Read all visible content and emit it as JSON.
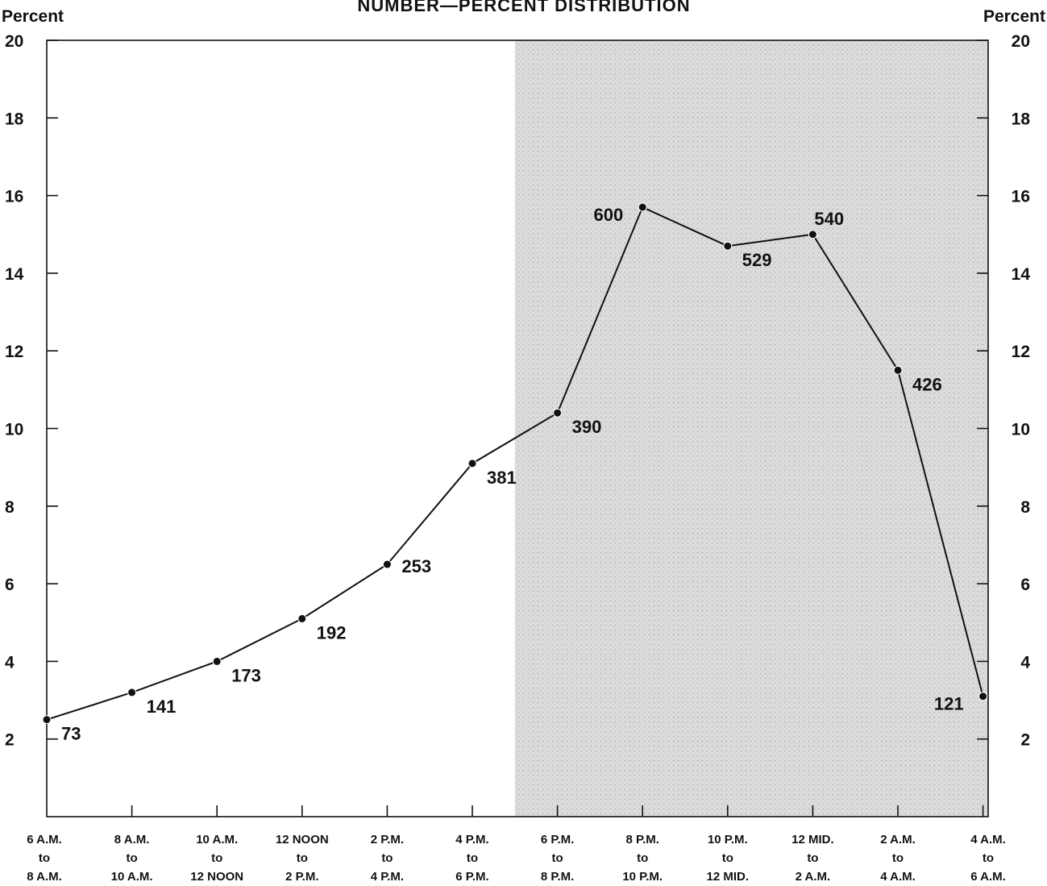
{
  "chart_data": {
    "type": "line",
    "title": "NUMBER—PERCENT DISTRIBUTION",
    "ylabel_left": "Percent",
    "ylabel_right": "Percent",
    "ylim": [
      0,
      20
    ],
    "yticks": [
      2,
      4,
      6,
      8,
      10,
      12,
      14,
      16,
      18,
      20
    ],
    "grid": false,
    "shaded_region_from_category": "6 P.M. to 8 P.M.",
    "categories": [
      [
        "6 A.M.",
        "to",
        "8 A.M."
      ],
      [
        "8 A.M.",
        "to",
        "10 A.M."
      ],
      [
        "10 A.M.",
        "to",
        "12 NOON"
      ],
      [
        "12 NOON",
        "to",
        "2 P.M."
      ],
      [
        "2 P.M.",
        "to",
        "4 P.M."
      ],
      [
        "4 P.M.",
        "to",
        "6 P.M."
      ],
      [
        "6 P.M.",
        "to",
        "8 P.M."
      ],
      [
        "8 P.M.",
        "to",
        "10 P.M."
      ],
      [
        "10 P.M.",
        "to",
        "12 MID."
      ],
      [
        "12 MID.",
        "to",
        "2 A.M."
      ],
      [
        "2 A.M.",
        "to",
        "4 A.M."
      ],
      [
        "4 A.M.",
        "to",
        "6 A.M."
      ]
    ],
    "series": [
      {
        "values": [
          2.5,
          3.2,
          4.0,
          5.1,
          6.5,
          9.1,
          10.4,
          15.7,
          14.7,
          15.0,
          11.5,
          3.1
        ],
        "data_labels": [
          "73",
          "141",
          "173",
          "192",
          "253",
          "381",
          "390",
          "600",
          "529",
          "540",
          "426",
          "121"
        ],
        "label_side": [
          "below-right",
          "below-right",
          "below-right",
          "below-right",
          "right",
          "below-right",
          "below-right",
          "left",
          "below-right",
          "above-right",
          "below-right",
          "left"
        ]
      }
    ],
    "colors": {
      "line": "#111111",
      "shade": "#d4d4d4",
      "axis": "#111111"
    }
  }
}
